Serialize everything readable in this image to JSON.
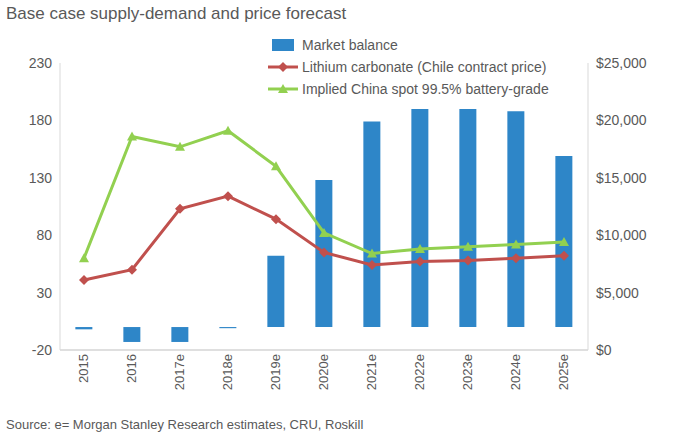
{
  "chart_data": {
    "type": "combo",
    "title": "Base case supply-demand and price forecast",
    "source": "Source: e= Morgan Stanley Research estimates, CRU, Roskill",
    "categories": [
      "2015",
      "2016",
      "2017e",
      "2018e",
      "2019e",
      "2020e",
      "2021e",
      "2022e",
      "2023e",
      "2024e",
      "2025e"
    ],
    "series": [
      {
        "name": "Market balance",
        "type": "bar",
        "color": "#2e86c8",
        "axis": "y",
        "values": [
          -2,
          -13,
          -13,
          -1,
          62,
          128,
          179,
          190,
          190,
          188,
          149
        ]
      },
      {
        "name": "Lithium carbonate (Chile contract price)",
        "type": "line",
        "color": "#c0504d",
        "marker": "diamond",
        "axis": "y2",
        "values": [
          6100,
          7000,
          12300,
          13400,
          11400,
          8500,
          7400,
          7700,
          7800,
          8000,
          8200
        ]
      },
      {
        "name": "Implied China spot 99.5% battery-grade",
        "type": "line",
        "color": "#92d050",
        "marker": "triangle",
        "axis": "y2",
        "values": [
          8000,
          18600,
          17700,
          19100,
          16000,
          10200,
          8400,
          8800,
          9000,
          9200,
          9400
        ]
      }
    ],
    "ylim": [
      -20,
      230
    ],
    "yticks": [
      -20,
      30,
      80,
      130,
      180,
      230
    ],
    "y2lim": [
      0,
      25000
    ],
    "y2ticks": [
      {
        "value": 0,
        "label": "$0"
      },
      {
        "value": 5000,
        "label": "$5,000"
      },
      {
        "value": 10000,
        "label": "$10,000"
      },
      {
        "value": 15000,
        "label": "$15,000"
      },
      {
        "value": 20000,
        "label": "$20,000"
      },
      {
        "value": 25000,
        "label": "$25,000"
      }
    ],
    "grid": false,
    "legend": "top"
  }
}
